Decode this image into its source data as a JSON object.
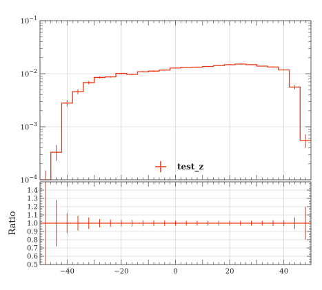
{
  "chart_data": [
    {
      "type": "line",
      "panel": "main",
      "title": "",
      "xlabel": "",
      "ylabel": "",
      "yscale": "log",
      "ylim": [
        0.0001,
        0.1
      ],
      "xlim": [
        -50,
        50
      ],
      "ytick_labels": [
        "10−4",
        "10−3",
        "10−2",
        "10−1"
      ],
      "ytick_values": [
        0.0001,
        0.001,
        0.01,
        0.1
      ],
      "legend": {
        "placement": "bottom-center",
        "entries": [
          "test_z"
        ]
      },
      "series": [
        {
          "name": "test_z",
          "color": "#ee3311",
          "bin_edges": [
            -50,
            -46,
            -42,
            -38,
            -34,
            -30,
            -26,
            -22,
            -18,
            -14,
            -10,
            -6,
            -2,
            2,
            6,
            10,
            14,
            18,
            22,
            26,
            30,
            34,
            38,
            42,
            46,
            50
          ],
          "values": [
            0.0001,
            0.00033,
            0.0028,
            0.0046,
            0.0068,
            0.0085,
            0.0087,
            0.0101,
            0.0097,
            0.0109,
            0.0112,
            0.0117,
            0.0128,
            0.0132,
            0.0133,
            0.0137,
            0.0142,
            0.0148,
            0.0152,
            0.0148,
            0.0139,
            0.0134,
            0.0118,
            0.0056,
            0.00055
          ],
          "errors_low": [
            4e-05,
            0.0001,
            0.0004,
            0.0005,
            0.0005,
            0.0004,
            0.0003,
            0.0003,
            0.0003,
            0.0003,
            0.0003,
            0.0003,
            0.0003,
            0.0003,
            0.0003,
            0.0003,
            0.0003,
            0.0003,
            0.0003,
            0.0003,
            0.0003,
            0.0003,
            0.0003,
            0.0005,
            0.00015
          ],
          "errors_high": [
            5e-05,
            0.00012,
            0.0004,
            0.0005,
            0.0005,
            0.0004,
            0.0003,
            0.0003,
            0.0003,
            0.0003,
            0.0003,
            0.0003,
            0.0003,
            0.0003,
            0.0003,
            0.0003,
            0.0003,
            0.0003,
            0.0003,
            0.0003,
            0.0003,
            0.0003,
            0.0003,
            0.0005,
            0.00017
          ]
        }
      ]
    },
    {
      "type": "line",
      "panel": "ratio",
      "title": "",
      "xlabel": "",
      "ylabel": "Ratio",
      "ylim": [
        0.5,
        1.5
      ],
      "xlim": [
        -50,
        50
      ],
      "ytick_labels": [
        "0.5",
        "0.6",
        "0.7",
        "0.8",
        "0.9",
        "1.0",
        "1.1",
        "1.2",
        "1.3",
        "1.4"
      ],
      "ytick_values": [
        0.5,
        0.6,
        0.7,
        0.8,
        0.9,
        1.0,
        1.1,
        1.2,
        1.3,
        1.4
      ],
      "xtick_labels": [
        "−40",
        "−20",
        "0",
        "20",
        "40"
      ],
      "xtick_values": [
        -40,
        -20,
        0,
        20,
        40
      ],
      "series": [
        {
          "name": "test_z",
          "color": "#ee3311",
          "bin_edges": [
            -50,
            -46,
            -42,
            -38,
            -34,
            -30,
            -26,
            -22,
            -18,
            -14,
            -10,
            -6,
            -2,
            2,
            6,
            10,
            14,
            18,
            22,
            26,
            30,
            34,
            38,
            42,
            46,
            50
          ],
          "values": [
            1,
            1,
            1,
            1,
            1,
            1,
            1,
            1,
            1,
            1,
            1,
            1,
            1,
            1,
            1,
            1,
            1,
            1,
            1,
            1,
            1,
            1,
            1,
            1,
            1
          ],
          "errors": [
            0.5,
            0.28,
            0.12,
            0.09,
            0.07,
            0.05,
            0.045,
            0.04,
            0.04,
            0.035,
            0.035,
            0.035,
            0.03,
            0.03,
            0.03,
            0.03,
            0.03,
            0.03,
            0.03,
            0.03,
            0.03,
            0.035,
            0.035,
            0.07,
            0.2
          ]
        }
      ]
    }
  ]
}
